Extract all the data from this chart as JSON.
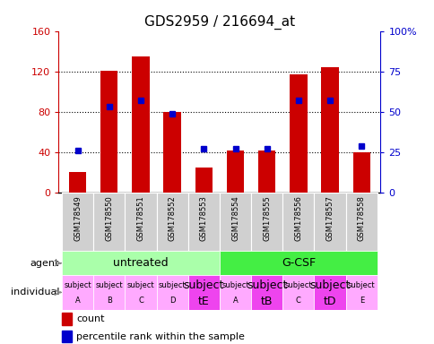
{
  "title": "GDS2959 / 216694_at",
  "samples": [
    "GSM178549",
    "GSM178550",
    "GSM178551",
    "GSM178552",
    "GSM178553",
    "GSM178554",
    "GSM178555",
    "GSM178556",
    "GSM178557",
    "GSM178558"
  ],
  "counts": [
    20,
    121,
    135,
    80,
    25,
    42,
    42,
    117,
    124,
    40
  ],
  "percentiles": [
    26,
    53,
    57,
    49,
    27,
    27,
    27,
    57,
    57,
    29
  ],
  "ylim_left": [
    0,
    160
  ],
  "ylim_right": [
    0,
    100
  ],
  "yticks_left": [
    0,
    40,
    80,
    120,
    160
  ],
  "yticks_right": [
    0,
    25,
    50,
    75,
    100
  ],
  "yticklabels_left": [
    "0",
    "40",
    "80",
    "120",
    "160"
  ],
  "yticklabels_right": [
    "0",
    "25",
    "50",
    "75",
    "100%"
  ],
  "bar_color": "#cc0000",
  "dot_color": "#0000cc",
  "agent_groups": [
    {
      "label": "untreated",
      "start": 0,
      "end": 5,
      "color": "#aaffaa"
    },
    {
      "label": "G-CSF",
      "start": 5,
      "end": 10,
      "color": "#44ee44"
    }
  ],
  "individual_labels_top": [
    "subject",
    "subject",
    "subject",
    "subject",
    "subject",
    "subject",
    "subject",
    "subject",
    "subject",
    "subject"
  ],
  "individual_labels_bot": [
    "A",
    "B",
    "C",
    "D",
    "tE",
    "A",
    "tB",
    "C",
    "tD",
    "E"
  ],
  "individual_fontsize_top": [
    6,
    6,
    6,
    6,
    9,
    6,
    9,
    6,
    9,
    6
  ],
  "individual_highlight": [
    4,
    6,
    8
  ],
  "individual_color_normal": "#ffaaff",
  "individual_color_highlight": "#ee44ee",
  "legend_count_color": "#cc0000",
  "legend_dot_color": "#0000cc",
  "bg_color": "#ffffff",
  "bar_width": 0.55,
  "sample_bg_color": "#d3d3d3",
  "sample_bg_color_alt": "#c0c0c0"
}
